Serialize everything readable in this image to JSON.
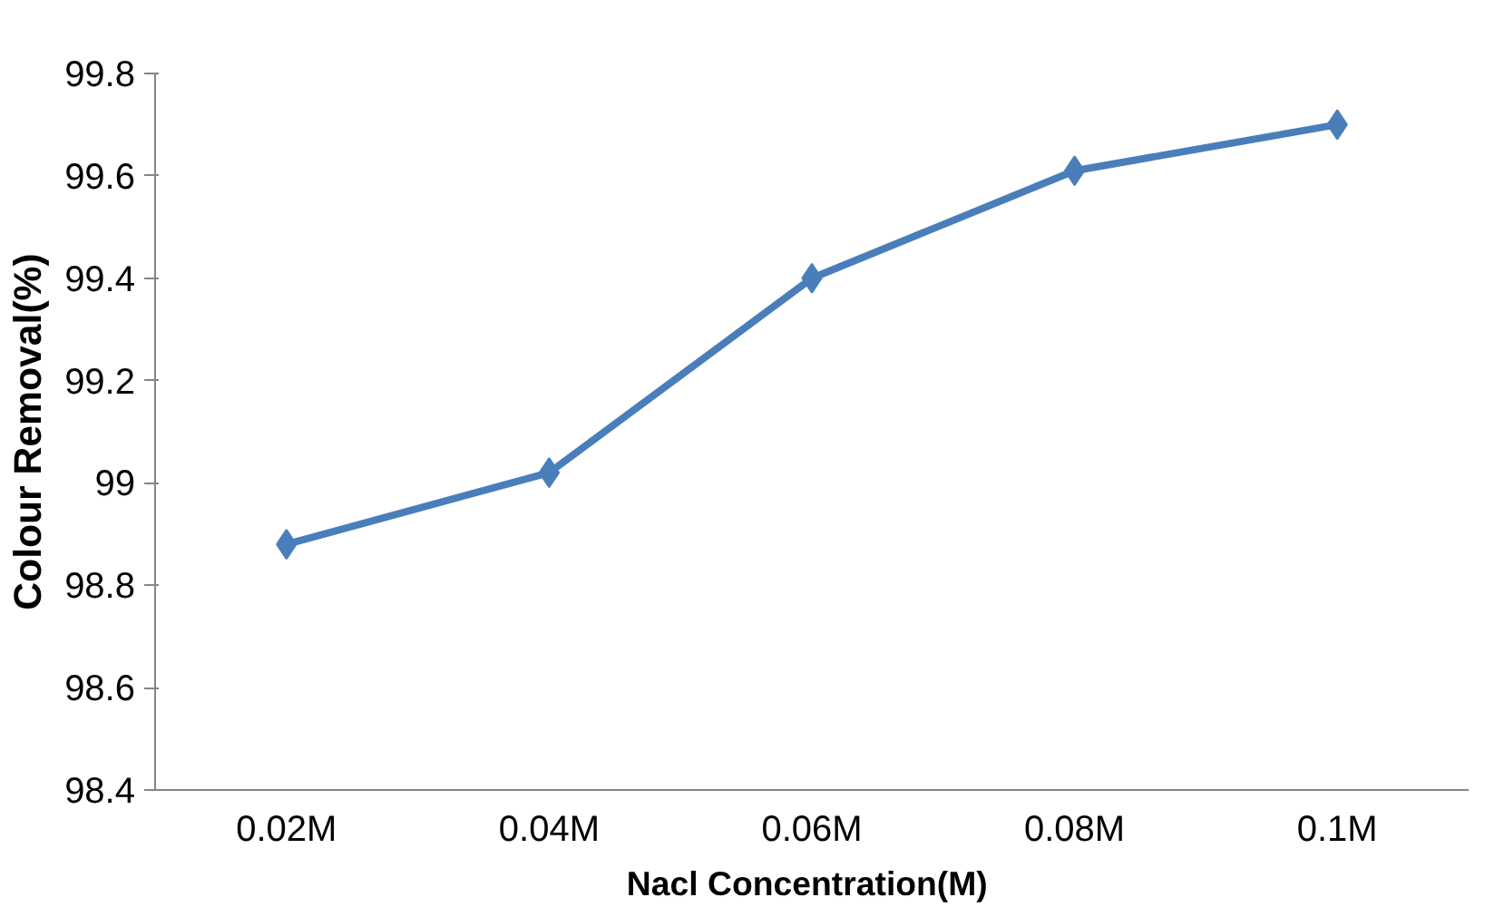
{
  "chart_data": {
    "type": "line",
    "xlabel": "Nacl  Concentration(M)",
    "ylabel": "Colour Removal(%)",
    "categories": [
      "0.02M",
      "0.04M",
      "0.06M",
      "0.08M",
      "0.1M"
    ],
    "series": [
      {
        "color": "#4a7ebb",
        "values": [
          98.88,
          99.02,
          99.4,
          99.61,
          99.7
        ]
      }
    ],
    "ylim": [
      98.4,
      99.8
    ],
    "yticks": [
      98.4,
      98.6,
      98.8,
      99,
      99.2,
      99.4,
      99.6,
      99.8
    ],
    "grid": false,
    "marker": "diamond",
    "line_style": "solid"
  }
}
